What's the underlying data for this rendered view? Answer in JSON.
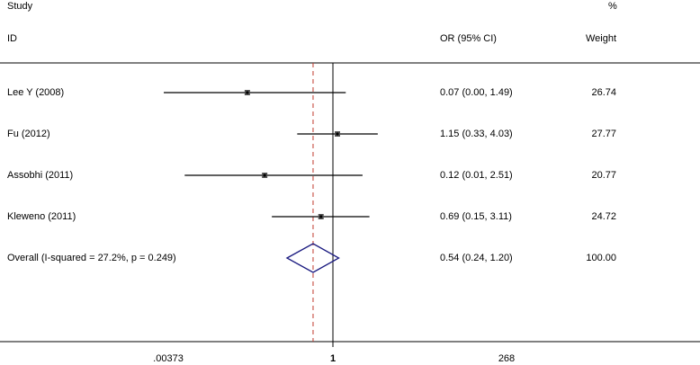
{
  "header": {
    "study": "Study",
    "percent": "%",
    "id": "ID",
    "or_ci": "OR (95% CI)",
    "weight": "Weight"
  },
  "chart_data": {
    "type": "forest",
    "title": "",
    "xscale": "log",
    "xlim": [
      0.00373,
      268
    ],
    "xticks": [
      ".00373",
      "1",
      "268"
    ],
    "null_line": 1,
    "overall_line": 0.54,
    "studies": [
      {
        "label": "Lee Y (2008)",
        "or": 0.07,
        "lo": 0.0,
        "hi": 1.49,
        "ci_text": "0.07 (0.00, 1.49)",
        "weight": "26.74"
      },
      {
        "label": "Fu (2012)",
        "or": 1.15,
        "lo": 0.33,
        "hi": 4.03,
        "ci_text": "1.15 (0.33, 4.03)",
        "weight": "27.77"
      },
      {
        "label": "Assobhi (2011)",
        "or": 0.12,
        "lo": 0.01,
        "hi": 2.51,
        "ci_text": "0.12 (0.01, 2.51)",
        "weight": "20.77"
      },
      {
        "label": "Kleweno (2011)",
        "or": 0.69,
        "lo": 0.15,
        "hi": 3.11,
        "ci_text": "0.69 (0.15, 3.11)",
        "weight": "24.72"
      }
    ],
    "overall": {
      "label": "Overall  (I-squared = 27.2%, p = 0.249)",
      "or": 0.54,
      "lo": 0.24,
      "hi": 1.2,
      "ci_text": "0.54 (0.24, 1.20)",
      "weight": "100.00"
    },
    "colors": {
      "lines": "#000000",
      "diamond": "#1a1a80",
      "overall_line": "#c0392b",
      "dots": "#555555"
    }
  }
}
